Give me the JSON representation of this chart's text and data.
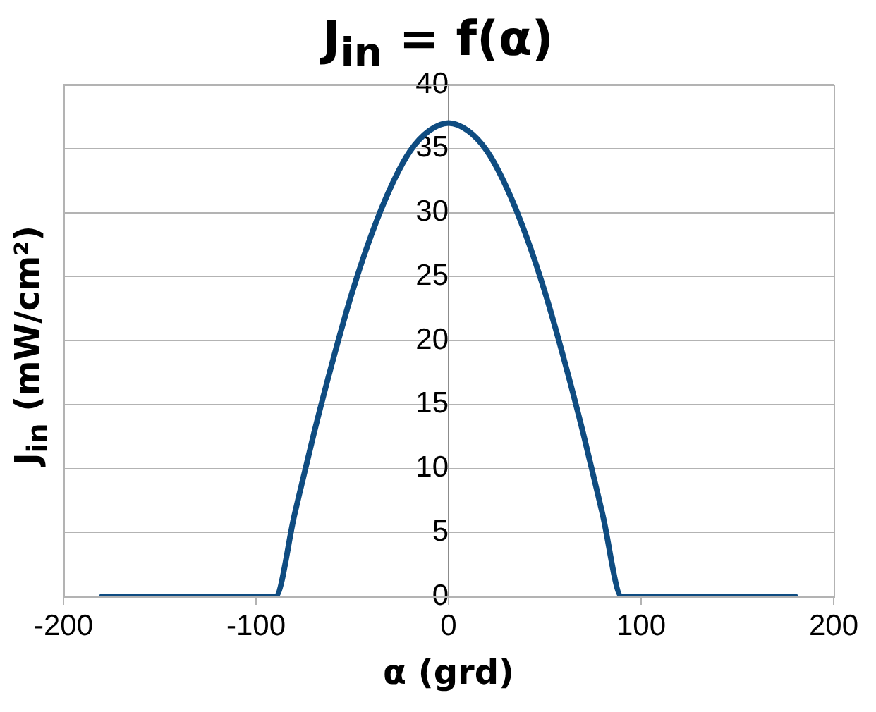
{
  "chart_data": {
    "type": "line",
    "title": "J$_{in}$ = f(α)",
    "xlabel": "α (grd)",
    "ylabel": "J$_{in}$ (mW/cm²)",
    "x": [
      -180,
      -170,
      -160,
      -150,
      -140,
      -130,
      -120,
      -110,
      -100,
      -90,
      -80,
      -70,
      -60,
      -50,
      -40,
      -30,
      -20,
      -10,
      0,
      10,
      20,
      30,
      40,
      50,
      60,
      70,
      80,
      90,
      100,
      110,
      120,
      130,
      140,
      150,
      160,
      170,
      180
    ],
    "series": [
      {
        "color": "#0f4c81",
        "values": [
          0,
          0,
          0,
          0,
          0,
          0,
          0,
          0,
          0,
          0,
          6.4,
          12.7,
          18.5,
          23.8,
          28.3,
          32.0,
          34.8,
          36.4,
          37.0,
          36.4,
          34.8,
          32.0,
          28.3,
          23.8,
          18.5,
          12.7,
          6.4,
          0,
          0,
          0,
          0,
          0,
          0,
          0,
          0,
          0,
          0
        ]
      }
    ],
    "xlim": [
      -200,
      200
    ],
    "xticks": [
      -200,
      -100,
      0,
      100,
      200
    ],
    "ylim": [
      0,
      40
    ],
    "yticks": [
      0,
      5,
      10,
      15,
      20,
      25,
      30,
      35,
      40
    ],
    "grid": "y",
    "legend": false,
    "marker": "none",
    "line_style": "solid"
  }
}
